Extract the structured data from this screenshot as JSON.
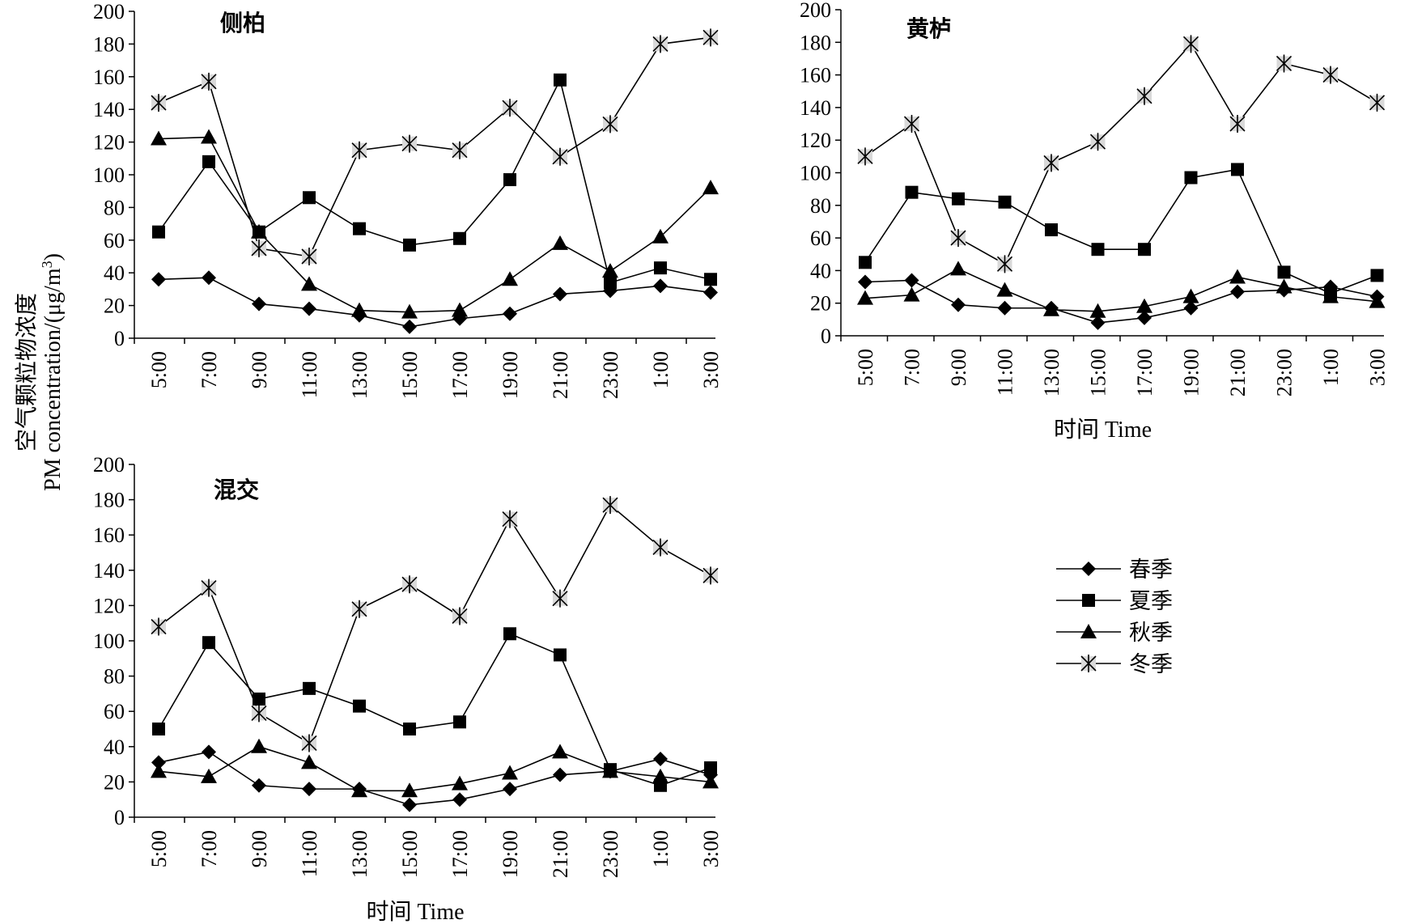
{
  "figure": {
    "ylabel_cn": "空气颗粒物浓度",
    "ylabel_en": "PM concentration/(μg/m",
    "ylabel_sup": "3",
    "ylabel_close": ")"
  },
  "legend": [
    {
      "label": "春季",
      "marker": "diamond"
    },
    {
      "label": "夏季",
      "marker": "square"
    },
    {
      "label": "秋季",
      "marker": "triangle"
    },
    {
      "label": "冬季",
      "marker": "star"
    }
  ],
  "colors": {
    "line": "#000000",
    "star_fill": "#d9d9d9"
  },
  "chart_data": [
    {
      "type": "line",
      "title": "侧柏",
      "xlabel": "",
      "ylabel": "",
      "ylim": [
        0,
        200
      ],
      "yticks": [
        0,
        20,
        40,
        60,
        80,
        100,
        120,
        140,
        160,
        180,
        200
      ],
      "categories": [
        "5:00",
        "7:00",
        "9:00",
        "11:00",
        "13:00",
        "15:00",
        "17:00",
        "19:00",
        "21:00",
        "23:00",
        "1:00",
        "3:00"
      ],
      "series": [
        {
          "name": "春季",
          "marker": "diamond",
          "values": [
            36,
            37,
            21,
            18,
            14,
            7,
            12,
            15,
            27,
            29,
            32,
            28
          ]
        },
        {
          "name": "夏季",
          "marker": "square",
          "values": [
            65,
            108,
            65,
            86,
            67,
            57,
            61,
            97,
            158,
            34,
            43,
            36
          ]
        },
        {
          "name": "秋季",
          "marker": "triangle",
          "values": [
            122,
            123,
            65,
            33,
            17,
            16,
            17,
            36,
            58,
            41,
            62,
            92
          ]
        },
        {
          "name": "冬季",
          "marker": "star",
          "values": [
            144,
            157,
            55,
            50,
            115,
            119,
            115,
            141,
            111,
            131,
            180,
            184
          ]
        }
      ]
    },
    {
      "type": "line",
      "title": "黄栌",
      "xlabel": "时间 Time",
      "ylabel": "",
      "ylim": [
        0,
        200
      ],
      "yticks": [
        0,
        20,
        40,
        60,
        80,
        100,
        120,
        140,
        160,
        180,
        200
      ],
      "categories": [
        "5:00",
        "7:00",
        "9:00",
        "11:00",
        "13:00",
        "15:00",
        "17:00",
        "19:00",
        "21:00",
        "23:00",
        "1:00",
        "3:00"
      ],
      "series": [
        {
          "name": "春季",
          "marker": "diamond",
          "values": [
            33,
            34,
            19,
            17,
            17,
            8,
            11,
            17,
            27,
            28,
            30,
            24
          ]
        },
        {
          "name": "夏季",
          "marker": "square",
          "values": [
            45,
            88,
            84,
            82,
            65,
            53,
            53,
            97,
            102,
            39,
            26,
            37
          ]
        },
        {
          "name": "秋季",
          "marker": "triangle",
          "values": [
            23,
            25,
            41,
            28,
            16,
            15,
            18,
            24,
            36,
            30,
            24,
            21
          ]
        },
        {
          "name": "冬季",
          "marker": "star",
          "values": [
            110,
            130,
            60,
            44,
            106,
            119,
            147,
            179,
            130,
            167,
            160,
            143
          ]
        }
      ]
    },
    {
      "type": "line",
      "title": "混交",
      "xlabel": "时间 Time",
      "ylabel": "",
      "ylim": [
        0,
        200
      ],
      "yticks": [
        0,
        20,
        40,
        60,
        80,
        100,
        120,
        140,
        160,
        180,
        200
      ],
      "categories": [
        "5:00",
        "7:00",
        "9:00",
        "11:00",
        "13:00",
        "15:00",
        "17:00",
        "19:00",
        "21:00",
        "23:00",
        "1:00",
        "3:00"
      ],
      "series": [
        {
          "name": "春季",
          "marker": "diamond",
          "values": [
            31,
            37,
            18,
            16,
            16,
            7,
            10,
            16,
            24,
            26,
            33,
            24
          ]
        },
        {
          "name": "夏季",
          "marker": "square",
          "values": [
            50,
            99,
            67,
            73,
            63,
            50,
            54,
            104,
            92,
            27,
            18,
            28
          ]
        },
        {
          "name": "秋季",
          "marker": "triangle",
          "values": [
            26,
            23,
            40,
            31,
            15,
            15,
            19,
            25,
            37,
            26,
            23,
            20
          ]
        },
        {
          "name": "冬季",
          "marker": "star",
          "values": [
            108,
            130,
            59,
            42,
            118,
            132,
            114,
            169,
            124,
            177,
            153,
            137
          ]
        }
      ]
    }
  ]
}
